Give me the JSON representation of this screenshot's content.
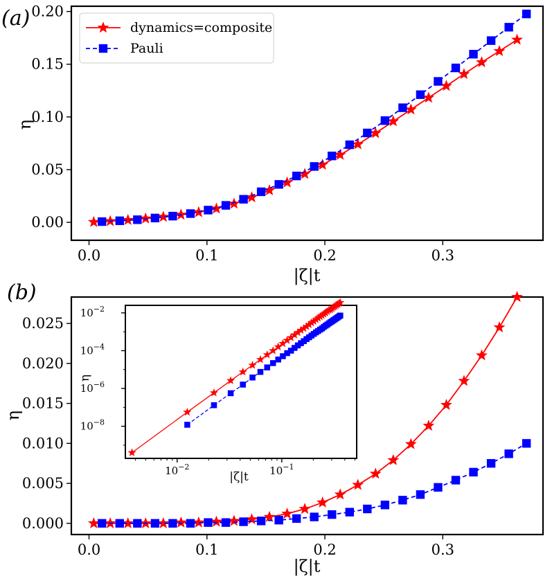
{
  "chart_data": [
    {
      "id": "a",
      "type": "line",
      "panel_label": "(a)",
      "xlabel": "|ζ|t",
      "ylabel": "η",
      "xlim": [
        -0.015,
        0.385
      ],
      "ylim": [
        -0.017,
        0.205
      ],
      "xticks": [
        0.0,
        0.1,
        0.2,
        0.3
      ],
      "xtick_labels": [
        "0.0",
        "0.1",
        "0.2",
        "0.3"
      ],
      "yticks": [
        0.0,
        0.05,
        0.1,
        0.15,
        0.2
      ],
      "ytick_labels": [
        "0.00",
        "0.05",
        "0.10",
        "0.15",
        "0.20"
      ],
      "legend_position": "top-left",
      "series": [
        {
          "name": "dynamics=composite",
          "color": "#ff0000",
          "marker": "star",
          "linestyle": "solid",
          "x": [
            0.004,
            0.018,
            0.033,
            0.048,
            0.063,
            0.078,
            0.093,
            0.108,
            0.123,
            0.138,
            0.153,
            0.168,
            0.183,
            0.198,
            0.213,
            0.228,
            0.243,
            0.258,
            0.273,
            0.288,
            0.303,
            0.318,
            0.333,
            0.348,
            0.363
          ],
          "y": [
            0.0003,
            0.0011,
            0.0022,
            0.0036,
            0.0052,
            0.0072,
            0.0096,
            0.013,
            0.0177,
            0.0237,
            0.0304,
            0.0378,
            0.0459,
            0.0546,
            0.064,
            0.074,
            0.0846,
            0.0958,
            0.107,
            0.1182,
            0.1294,
            0.1406,
            0.1518,
            0.1624,
            0.1732
          ]
        },
        {
          "name": "Pauli",
          "color": "#0000ff",
          "marker": "square",
          "linestyle": "dashed",
          "x": [
            0.011,
            0.026,
            0.041,
            0.056,
            0.071,
            0.086,
            0.101,
            0.116,
            0.131,
            0.146,
            0.161,
            0.176,
            0.191,
            0.206,
            0.221,
            0.236,
            0.251,
            0.266,
            0.281,
            0.296,
            0.311,
            0.326,
            0.341,
            0.356,
            0.371
          ],
          "y": [
            0.0007,
            0.0015,
            0.0025,
            0.0041,
            0.0059,
            0.0083,
            0.0116,
            0.0161,
            0.0219,
            0.029,
            0.036,
            0.044,
            0.053,
            0.063,
            0.0736,
            0.0848,
            0.0965,
            0.1087,
            0.1211,
            0.1337,
            0.1465,
            0.1595,
            0.1724,
            0.1851,
            0.1977
          ]
        }
      ]
    },
    {
      "id": "b",
      "type": "line",
      "panel_label": "(b)",
      "xlabel": "|ζ|t",
      "ylabel": "η",
      "xlim": [
        -0.015,
        0.385
      ],
      "ylim": [
        -0.0014,
        0.0283
      ],
      "xticks": [
        0.0,
        0.1,
        0.2,
        0.3
      ],
      "xtick_labels": [
        "0.0",
        "0.1",
        "0.2",
        "0.3"
      ],
      "yticks": [
        0.0,
        0.005,
        0.01,
        0.015,
        0.02,
        0.025
      ],
      "ytick_labels": [
        "0.000",
        "0.005",
        "0.010",
        "0.015",
        "0.020",
        "0.025"
      ],
      "series": [
        {
          "name": "dynamics=composite",
          "color": "#ff0000",
          "marker": "star",
          "linestyle": "solid",
          "x": [
            0.004,
            0.018,
            0.033,
            0.048,
            0.063,
            0.078,
            0.093,
            0.108,
            0.123,
            0.138,
            0.153,
            0.168,
            0.183,
            0.198,
            0.213,
            0.228,
            0.243,
            0.258,
            0.273,
            0.288,
            0.303,
            0.318,
            0.333,
            0.348,
            0.363
          ],
          "y": [
            0.0,
            0.0,
            0.0,
            0.0,
            0.0,
            0.0001,
            0.0001,
            0.0002,
            0.0003,
            0.0005,
            0.0008,
            0.0012,
            0.0018,
            0.0026,
            0.0036,
            0.0048,
            0.0062,
            0.0079,
            0.0099,
            0.0122,
            0.0148,
            0.0178,
            0.021,
            0.0245,
            0.0283
          ]
        },
        {
          "name": "Pauli",
          "color": "#0000ff",
          "marker": "square",
          "linestyle": "dashed",
          "x": [
            0.011,
            0.026,
            0.041,
            0.056,
            0.071,
            0.086,
            0.101,
            0.116,
            0.131,
            0.146,
            0.161,
            0.176,
            0.191,
            0.206,
            0.221,
            0.236,
            0.251,
            0.266,
            0.281,
            0.296,
            0.311,
            0.326,
            0.341,
            0.356,
            0.371
          ],
          "y": [
            0.0,
            0.0,
            0.0,
            0.0,
            0.0,
            0.0,
            0.0001,
            0.0001,
            0.0002,
            0.0003,
            0.0004,
            0.0006,
            0.0008,
            0.0011,
            0.0014,
            0.0018,
            0.0023,
            0.0029,
            0.0036,
            0.0045,
            0.0054,
            0.0064,
            0.0075,
            0.0087,
            0.01
          ]
        }
      ]
    },
    {
      "id": "b_inset",
      "type": "line",
      "xscale": "log",
      "yscale": "log",
      "xlabel": "|ζ|t",
      "ylabel": "η",
      "xlim": [
        0.0032,
        0.52
      ],
      "ylim": [
        2e-10,
        0.025
      ],
      "xticks": [
        0.01,
        0.1
      ],
      "xtick_labels": [
        "10",
        "10"
      ],
      "xtick_exponents": [
        "−2",
        "−1"
      ],
      "yticks": [
        1e-08,
        1e-06,
        0.0001,
        0.01
      ],
      "ytick_labels": [
        "10",
        "10",
        "10",
        "10"
      ],
      "ytick_exponents": [
        "−8",
        "−6",
        "−4",
        "−2"
      ],
      "series": [
        {
          "name": "dynamics=composite",
          "color": "#ff0000",
          "marker": "star",
          "linestyle": "solid",
          "x": [
            0.0037,
            0.0125,
            0.0225,
            0.0325,
            0.0425,
            0.0525,
            0.0625,
            0.0725,
            0.0825,
            0.0925,
            0.1025,
            0.1125,
            0.1225,
            0.1325,
            0.1425,
            0.1525,
            0.1625,
            0.1725,
            0.1825,
            0.1925,
            0.2025,
            0.2125,
            0.2225,
            0.2325,
            0.2425,
            0.2525,
            0.2625,
            0.2725,
            0.2825,
            0.2925,
            0.3025,
            0.3125,
            0.3225,
            0.3325,
            0.3425,
            0.3525,
            0.3625
          ],
          "y": [
            4e-10,
            5.6e-08,
            5.9e-07,
            2.6e-06,
            7.5e-06,
            1.7e-05,
            3.4e-05,
            6.1e-05,
            0.0001,
            0.00016,
            0.00024,
            0.00035,
            0.00049,
            0.00068,
            0.00091,
            0.0012,
            0.0015,
            0.0019,
            0.0024,
            0.003,
            0.0036,
            0.0044,
            0.0053,
            0.0063,
            0.0074,
            0.0087,
            0.01,
            0.012,
            0.014,
            0.015,
            0.017,
            0.02,
            0.022,
            0.025,
            0.028,
            0.032,
            0.035
          ]
        },
        {
          "name": "Pauli",
          "color": "#0000ff",
          "marker": "square",
          "linestyle": "dashed",
          "x": [
            0.0125,
            0.0225,
            0.0325,
            0.0425,
            0.0525,
            0.0625,
            0.0725,
            0.0825,
            0.0925,
            0.1025,
            0.1125,
            0.1225,
            0.1325,
            0.1425,
            0.1525,
            0.1625,
            0.1725,
            0.1825,
            0.1925,
            0.2025,
            0.2125,
            0.2225,
            0.2325,
            0.2425,
            0.2525,
            0.2625,
            0.2725,
            0.2825,
            0.2925,
            0.3025,
            0.3125,
            0.3225,
            0.3325,
            0.3425,
            0.3525,
            0.3625
          ],
          "y": [
            1.2e-08,
            1.3e-07,
            5.6e-07,
            1.6e-06,
            3.8e-06,
            7.5e-06,
            1.3e-05,
            2.2e-05,
            3.4e-05,
            5.1e-05,
            7.4e-05,
            0.0001,
            0.00014,
            0.00019,
            0.00025,
            0.00032,
            0.00041,
            0.00051,
            0.00063,
            0.00077,
            0.00093,
            0.0011,
            0.0013,
            0.0015,
            0.0018,
            0.0021,
            0.0024,
            0.0028,
            0.0032,
            0.0036,
            0.0041,
            0.0046,
            0.0052,
            0.0058,
            0.0065,
            0.0072
          ]
        }
      ]
    }
  ]
}
